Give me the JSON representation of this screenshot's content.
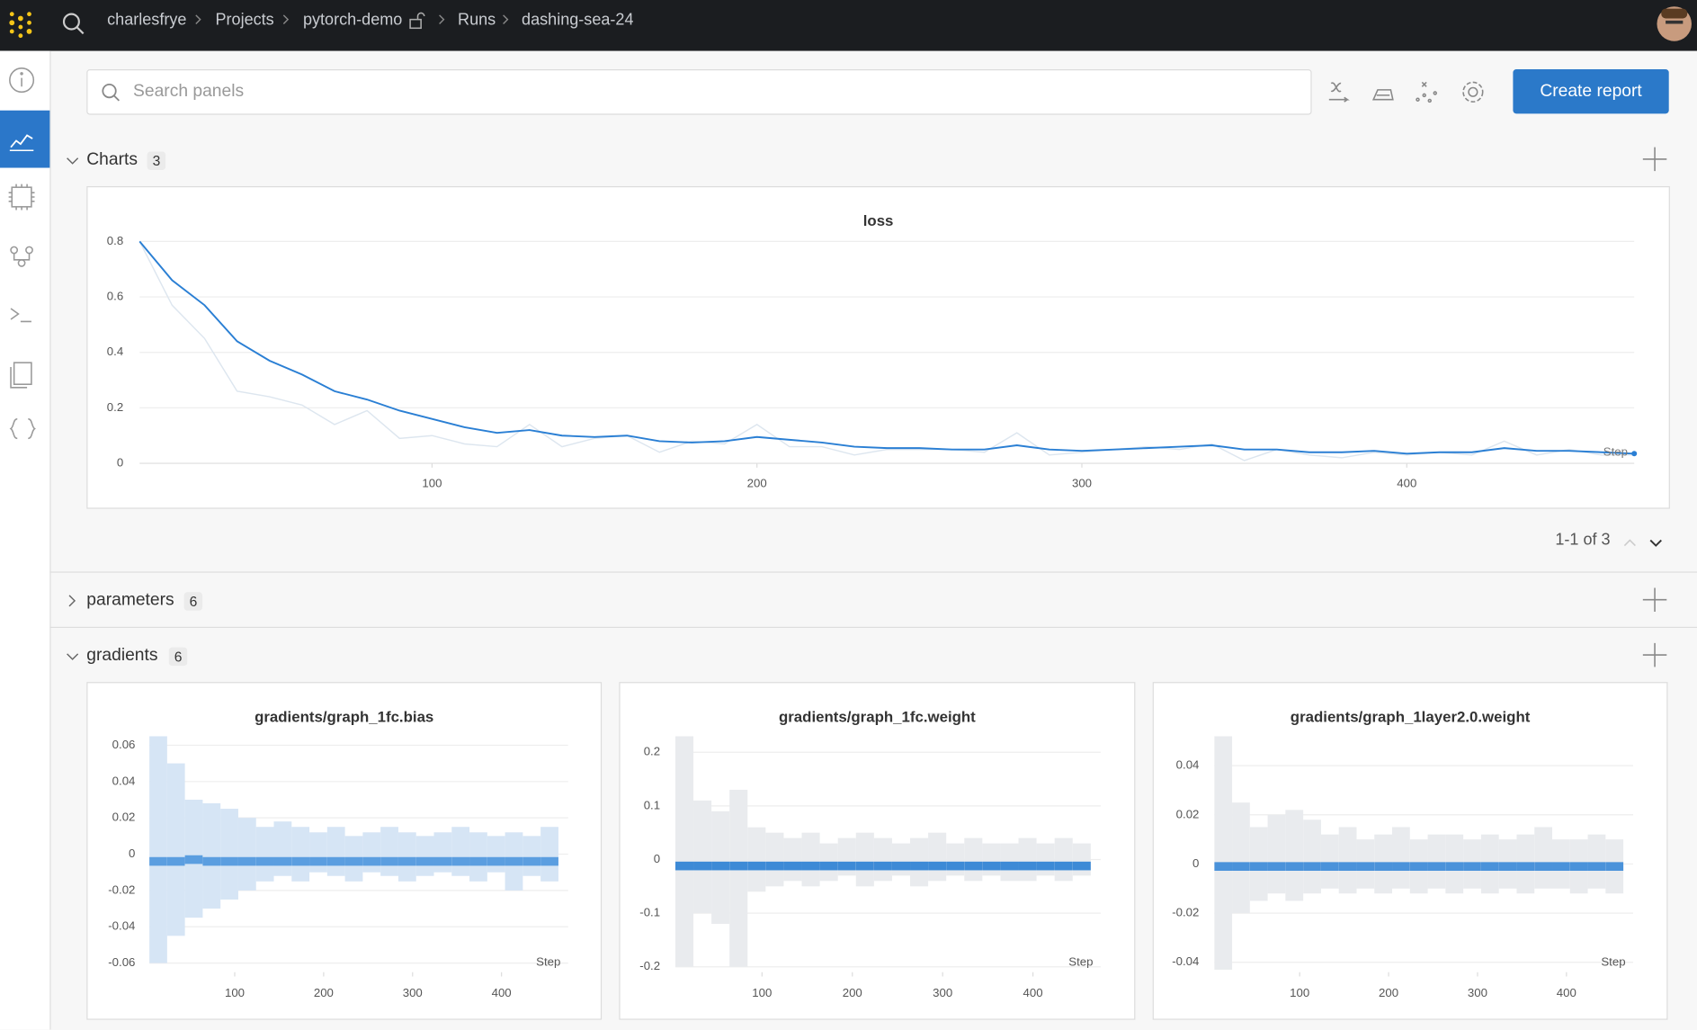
{
  "topbar": {
    "breadcrumbs": [
      "charlesfrye",
      "Projects",
      "pytorch-demo",
      "Runs",
      "dashing-sea-24"
    ]
  },
  "toolbar": {
    "search_placeholder": "Search panels",
    "button": "Create report"
  },
  "sections": [
    {
      "title": "Charts",
      "count": 3,
      "pagination": "1-1 of 3"
    },
    {
      "title": "parameters",
      "count": 6
    },
    {
      "title": "gradients",
      "count": 6
    }
  ],
  "chart_data": [
    {
      "type": "line",
      "title": "loss",
      "x_label": "Step",
      "x": [
        10,
        20,
        30,
        40,
        50,
        60,
        70,
        80,
        90,
        100,
        110,
        120,
        130,
        140,
        150,
        160,
        170,
        180,
        190,
        200,
        210,
        220,
        230,
        240,
        250,
        260,
        270,
        280,
        290,
        300,
        310,
        320,
        330,
        340,
        350,
        360,
        370,
        380,
        390,
        400,
        410,
        420,
        430,
        440,
        450,
        460,
        470
      ],
      "series": [
        {
          "color": "#dde6ef",
          "values": [
            0.8,
            0.57,
            0.45,
            0.26,
            0.24,
            0.21,
            0.14,
            0.19,
            0.09,
            0.1,
            0.07,
            0.06,
            0.14,
            0.06,
            0.09,
            0.1,
            0.04,
            0.08,
            0.07,
            0.14,
            0.06,
            0.06,
            0.03,
            0.05,
            0.05,
            0.05,
            0.04,
            0.11,
            0.03,
            0.04,
            0.05,
            0.06,
            0.05,
            0.07,
            0.01,
            0.05,
            0.03,
            0.02,
            0.04,
            0.03,
            0.04,
            0.03,
            0.08,
            0.03,
            0.05,
            0.03,
            0.03
          ]
        },
        {
          "color": "#2a7fd4",
          "values": [
            0.8,
            0.66,
            0.57,
            0.44,
            0.37,
            0.32,
            0.26,
            0.23,
            0.19,
            0.16,
            0.13,
            0.11,
            0.12,
            0.1,
            0.095,
            0.1,
            0.08,
            0.075,
            0.08,
            0.095,
            0.085,
            0.075,
            0.06,
            0.055,
            0.055,
            0.05,
            0.05,
            0.065,
            0.05,
            0.045,
            0.05,
            0.055,
            0.06,
            0.065,
            0.05,
            0.05,
            0.04,
            0.04,
            0.045,
            0.035,
            0.04,
            0.04,
            0.055,
            0.045,
            0.045,
            0.04,
            0.035
          ]
        }
      ],
      "xlim": [
        10,
        470
      ],
      "xticks": [
        100,
        200,
        300,
        400
      ],
      "ylim": [
        0,
        0.8
      ],
      "yticks": [
        0,
        0.2,
        0.4,
        0.6,
        0.8
      ],
      "grid": true
    },
    {
      "type": "range",
      "title": "gradients/graph_1fc.bias",
      "x_label": "Step",
      "x": [
        14,
        34,
        54,
        74,
        94,
        114,
        134,
        154,
        174,
        194,
        214,
        234,
        254,
        274,
        294,
        314,
        334,
        354,
        374,
        394,
        414,
        434,
        454
      ],
      "series": [
        {
          "color": "#d6e5f5",
          "values": [
            -0.06,
            -0.045,
            -0.035,
            -0.03,
            -0.025,
            -0.02,
            -0.015,
            -0.012,
            -0.015,
            -0.01,
            -0.012,
            -0.015,
            -0.01,
            -0.012,
            -0.015,
            -0.012,
            -0.01,
            -0.012,
            -0.015,
            -0.01,
            -0.02,
            -0.012,
            -0.015
          ]
        },
        {
          "color": "#d6e5f5",
          "values": [
            0.065,
            0.05,
            0.03,
            0.028,
            0.025,
            0.02,
            0.015,
            0.018,
            0.015,
            0.012,
            0.015,
            0.01,
            0.012,
            0.015,
            0.012,
            0.01,
            0.012,
            0.015,
            0.012,
            0.01,
            0.012,
            0.01,
            0.015
          ]
        },
        {
          "color": "#5b9ee0",
          "values": [
            -0.004,
            -0.004,
            -0.003,
            -0.004,
            -0.004,
            -0.004,
            -0.004,
            -0.004,
            -0.004,
            -0.004,
            -0.004,
            -0.004,
            -0.004,
            -0.004,
            -0.004,
            -0.004,
            -0.004,
            -0.004,
            -0.004,
            -0.004,
            -0.004,
            -0.004,
            -0.004
          ]
        }
      ],
      "xlim": [
        4,
        475
      ],
      "xticks": [
        100,
        200,
        300,
        400
      ],
      "ylim": [
        -0.065,
        0.065
      ],
      "yticks": [
        -0.06,
        -0.04,
        -0.02,
        0,
        0.02,
        0.04,
        0.06
      ],
      "grid": true
    },
    {
      "type": "range",
      "title": "gradients/graph_1fc.weight",
      "x_label": "Step",
      "x": [
        14,
        34,
        54,
        74,
        94,
        114,
        134,
        154,
        174,
        194,
        214,
        234,
        254,
        274,
        294,
        314,
        334,
        354,
        374,
        394,
        414,
        434,
        454
      ],
      "series": [
        {
          "color": "#e9ebee",
          "values": [
            -0.2,
            -0.1,
            -0.12,
            -0.2,
            -0.06,
            -0.05,
            -0.04,
            -0.05,
            -0.04,
            -0.03,
            -0.05,
            -0.04,
            -0.03,
            -0.05,
            -0.04,
            -0.03,
            -0.04,
            -0.03,
            -0.04,
            -0.04,
            -0.03,
            -0.04,
            -0.03
          ]
        },
        {
          "color": "#e9ebee",
          "values": [
            0.23,
            0.11,
            0.09,
            0.13,
            0.06,
            0.05,
            0.04,
            0.05,
            0.03,
            0.04,
            0.05,
            0.04,
            0.03,
            0.04,
            0.05,
            0.03,
            0.04,
            0.03,
            0.03,
            0.04,
            0.03,
            0.04,
            0.03
          ]
        },
        {
          "color": "#3d8ad6",
          "values": [
            -0.012,
            -0.012,
            -0.012,
            -0.012,
            -0.012,
            -0.012,
            -0.012,
            -0.012,
            -0.012,
            -0.012,
            -0.012,
            -0.012,
            -0.012,
            -0.012,
            -0.012,
            -0.012,
            -0.012,
            -0.012,
            -0.012,
            -0.012,
            -0.012,
            -0.012,
            -0.012
          ]
        }
      ],
      "xlim": [
        4,
        475
      ],
      "xticks": [
        100,
        200,
        300,
        400
      ],
      "ylim": [
        -0.21,
        0.23
      ],
      "yticks": [
        -0.2,
        -0.1,
        0,
        0.1,
        0.2
      ],
      "grid": true
    },
    {
      "type": "range",
      "title": "gradients/graph_1layer2.0.weight",
      "x_label": "Step",
      "x": [
        14,
        34,
        54,
        74,
        94,
        114,
        134,
        154,
        174,
        194,
        214,
        234,
        254,
        274,
        294,
        314,
        334,
        354,
        374,
        394,
        414,
        434,
        454
      ],
      "series": [
        {
          "color": "#e9ebee",
          "values": [
            -0.043,
            -0.02,
            -0.015,
            -0.012,
            -0.015,
            -0.012,
            -0.01,
            -0.012,
            -0.01,
            -0.012,
            -0.01,
            -0.012,
            -0.01,
            -0.012,
            -0.01,
            -0.012,
            -0.01,
            -0.012,
            -0.01,
            -0.01,
            -0.012,
            -0.01,
            -0.012
          ]
        },
        {
          "color": "#e9ebee",
          "values": [
            0.052,
            0.025,
            0.015,
            0.02,
            0.022,
            0.018,
            0.012,
            0.015,
            0.01,
            0.012,
            0.015,
            0.01,
            0.012,
            0.012,
            0.01,
            0.012,
            0.01,
            0.012,
            0.015,
            0.01,
            0.01,
            0.012,
            0.01
          ]
        },
        {
          "color": "#4a92da",
          "values": [
            -0.001,
            -0.001,
            -0.001,
            -0.001,
            -0.001,
            -0.001,
            -0.001,
            -0.001,
            -0.001,
            -0.001,
            -0.001,
            -0.001,
            -0.001,
            -0.001,
            -0.001,
            -0.001,
            -0.001,
            -0.001,
            -0.001,
            -0.001,
            -0.001,
            -0.001,
            -0.001
          ]
        }
      ],
      "xlim": [
        4,
        475
      ],
      "xticks": [
        100,
        200,
        300,
        400
      ],
      "ylim": [
        -0.044,
        0.052
      ],
      "yticks": [
        -0.04,
        -0.02,
        0,
        0.02,
        0.04
      ],
      "grid": true
    }
  ]
}
